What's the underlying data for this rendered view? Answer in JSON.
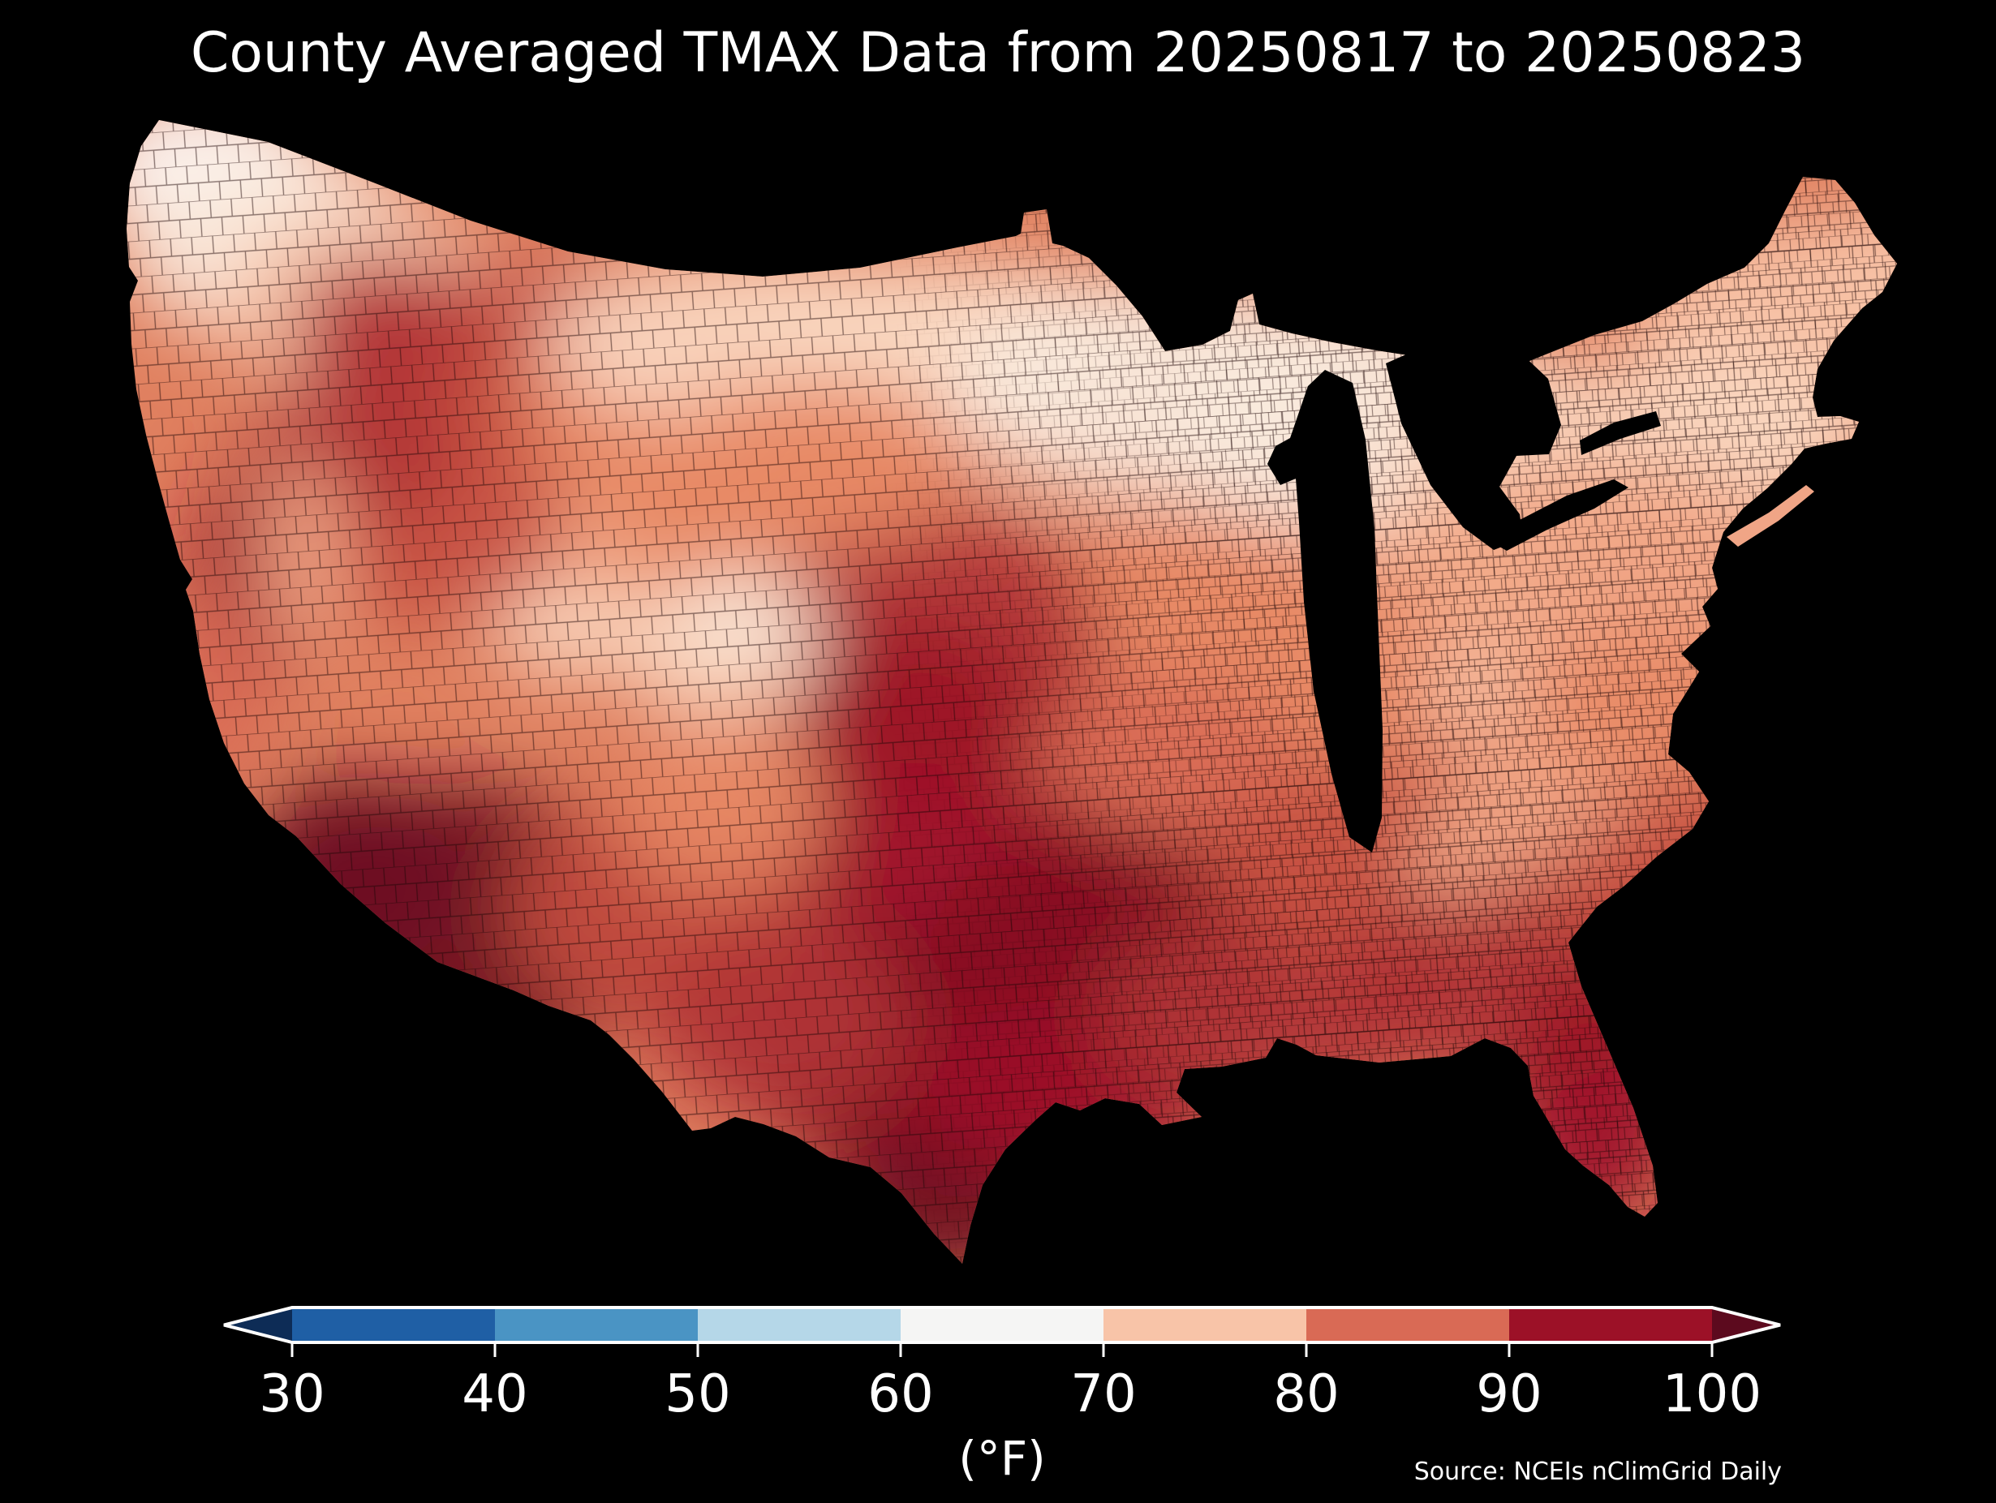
{
  "title": "County Averaged TMAX Data from 20250817 to 20250823",
  "source": "Source: NCEIs nClimGrid Daily",
  "colorbar": {
    "unit_label": "(°F)",
    "tick_labels": [
      "30",
      "40",
      "50",
      "60",
      "70",
      "80",
      "90",
      "100"
    ],
    "segments": [
      {
        "range": "30-40",
        "color": "#1f5fa5"
      },
      {
        "range": "40-50",
        "color": "#4a94c4"
      },
      {
        "range": "50-60",
        "color": "#b5d7e8"
      },
      {
        "range": "60-70",
        "color": "#f5f5f4"
      },
      {
        "range": "70-80",
        "color": "#f8c4a8"
      },
      {
        "range": "80-90",
        "color": "#d96a55"
      },
      {
        "range": "90-100",
        "color": "#9c1127"
      }
    ],
    "under_arrow_color": "#0d2c56",
    "over_arrow_color": "#5c0a1e",
    "outline_color": "#ffffff",
    "tick_color": "#ffffff"
  },
  "map": {
    "type": "choropleth",
    "region": "Contiguous United States, county level",
    "background_color": "#000000",
    "county_line_color": "#1e0505",
    "gradient_palette": [
      "#fdfdfd",
      "#faeadd",
      "#fbd9c2",
      "#f8c4a8",
      "#f2a888",
      "#e88a66",
      "#d96a55",
      "#c64f41",
      "#b13336",
      "#9c1127",
      "#871021",
      "#6e0c20",
      "#5c0a1e"
    ],
    "observed_values_f": {
      "pacific_northwest_coast": "60s (near white)",
      "northern_tier_mt_nd_mn_wi_mi": "low-to-mid 70s (pale salmon)",
      "great_lakes_shorelines": "upper 60s to low 70s (palest)",
      "new_england": "mid 70s",
      "ohio_valley_midwest": "low-to-mid 80s",
      "central_plains_ks_ne": "low 90s (dark red)",
      "texas_oklahoma_arklatex": "mid-to-upper 90s (dark red)",
      "south_texas_rio_grande": "near 100 (very dark red)",
      "arizona_se_california_deserts": "100+ (darkest maroon)",
      "colorado_rockies_high_country": "60s to low 70s (light patch)",
      "utah_high_country": "low 70s (light patches)",
      "appalachians": "upper 70s (lighter diagonal streak)",
      "southeast_atlantic_coast": "upper 80s to low 90s",
      "florida": "low 90s"
    }
  }
}
